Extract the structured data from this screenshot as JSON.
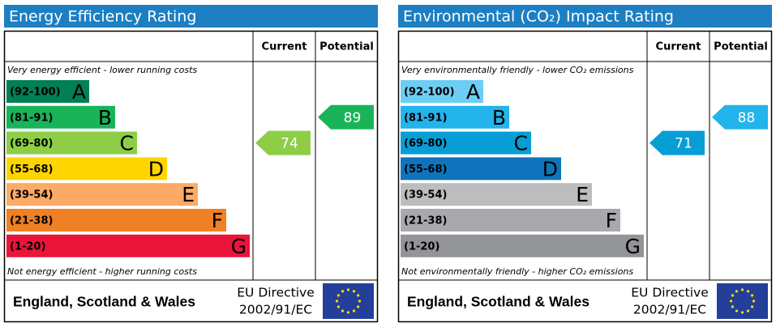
{
  "panels": [
    {
      "title": "Energy Efficiency Rating",
      "col_current": "Current",
      "col_potential": "Potential",
      "top_note": "Very energy efficient - lower running costs",
      "bottom_note": "Not energy efficient - higher running costs",
      "bands": [
        {
          "range": "(92-100)",
          "letter": "A",
          "color": "#008054"
        },
        {
          "range": "(81-91)",
          "letter": "B",
          "color": "#19b459"
        },
        {
          "range": "(69-80)",
          "letter": "C",
          "color": "#8dce46"
        },
        {
          "range": "(55-68)",
          "letter": "D",
          "color": "#ffd500"
        },
        {
          "range": "(39-54)",
          "letter": "E",
          "color": "#fcaa65"
        },
        {
          "range": "(21-38)",
          "letter": "F",
          "color": "#ef8023"
        },
        {
          "range": "(1-20)",
          "letter": "G",
          "color": "#e9153b"
        }
      ],
      "current": 74,
      "potential": 89,
      "region": "England, Scotland & Wales",
      "directive": "EU Directive",
      "directive_code": "2002/91/EC"
    },
    {
      "title": "Environmental (CO₂) Impact Rating",
      "col_current": "Current",
      "col_potential": "Potential",
      "top_note": "Very environmentally friendly - lower CO₂ emissions",
      "bottom_note": "Not environmentally friendly - higher CO₂ emissions",
      "bands": [
        {
          "range": "(92-100)",
          "letter": "A",
          "color": "#6ccef5"
        },
        {
          "range": "(81-91)",
          "letter": "B",
          "color": "#22b4eb"
        },
        {
          "range": "(69-80)",
          "letter": "C",
          "color": "#079ed5"
        },
        {
          "range": "(55-68)",
          "letter": "D",
          "color": "#0f74bb"
        },
        {
          "range": "(39-54)",
          "letter": "E",
          "color": "#bbbdbf"
        },
        {
          "range": "(21-38)",
          "letter": "F",
          "color": "#a7a9ac"
        },
        {
          "range": "(1-20)",
          "letter": "G",
          "color": "#929497"
        }
      ],
      "current": 71,
      "potential": 88,
      "region": "England, Scotland & Wales",
      "directive": "EU Directive",
      "directive_code": "2002/91/EC"
    }
  ]
}
